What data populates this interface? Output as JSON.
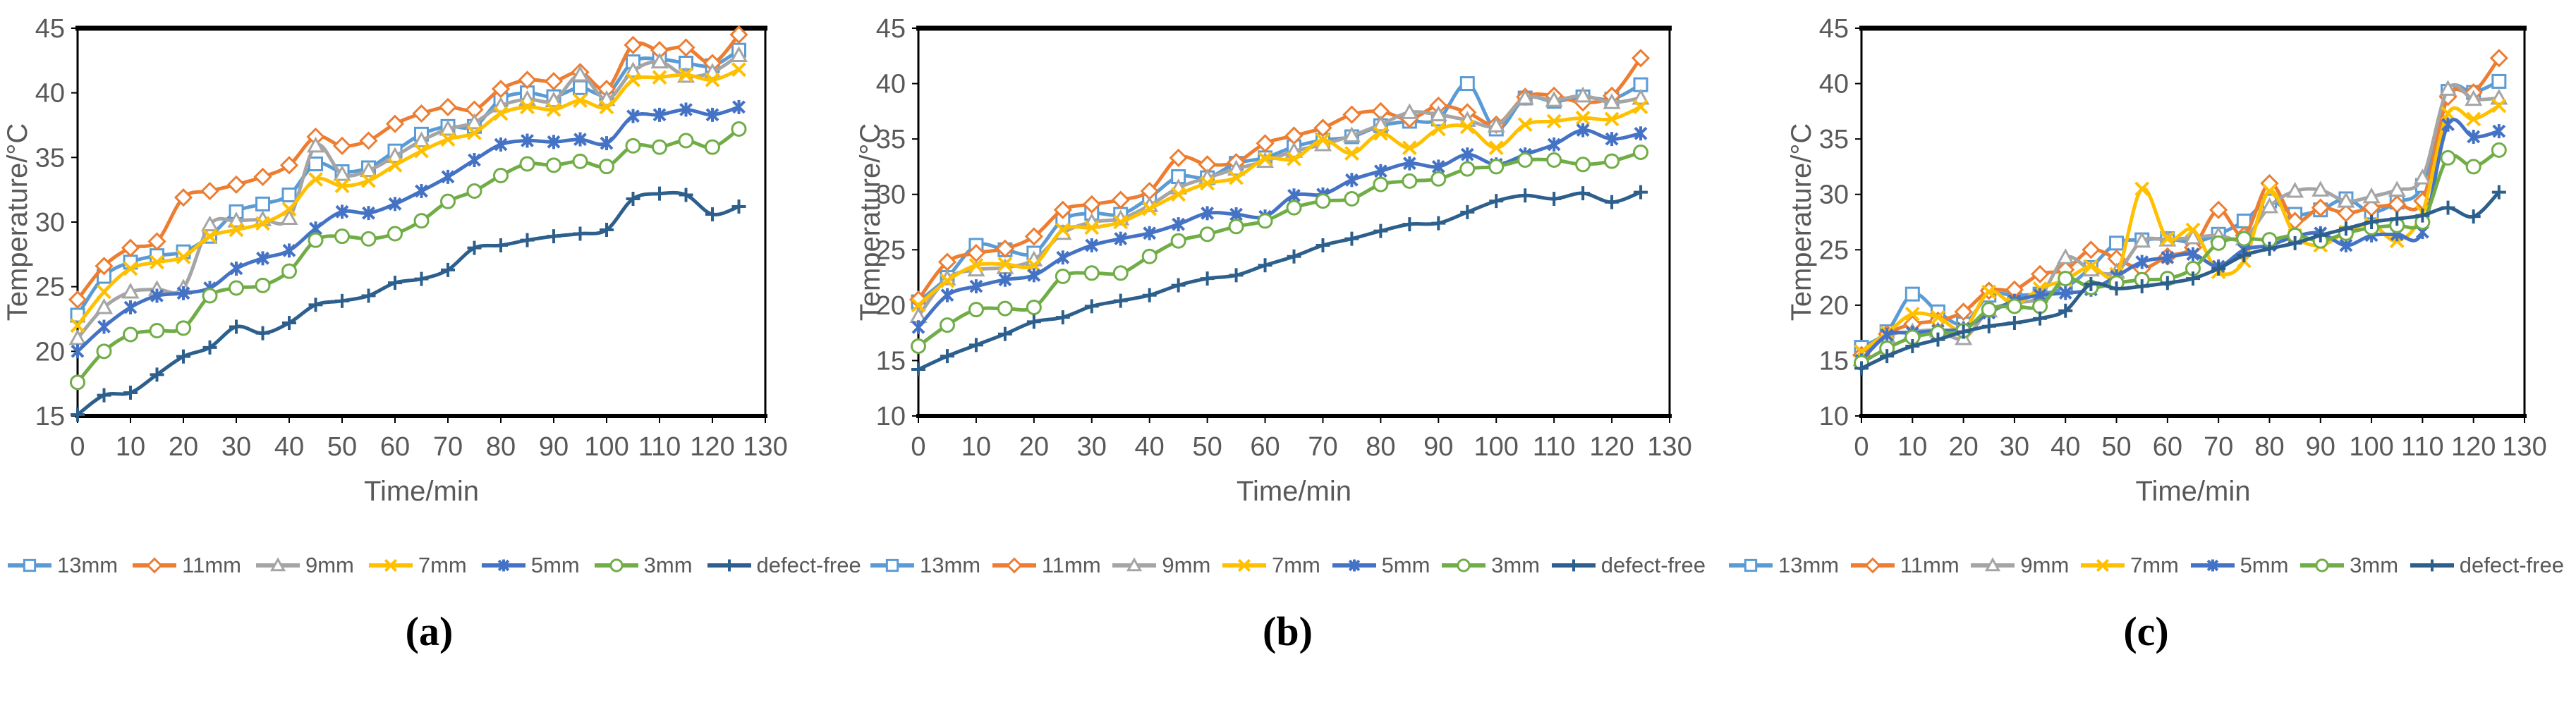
{
  "figure": {
    "xlabel": "Time/min",
    "ylabel": "Temperature/°C",
    "text_color": "#595959",
    "axis_color": "#000000"
  },
  "chart_data": [
    {
      "caption": "(a)",
      "type": "line",
      "title": "",
      "xlabel": "Time/min",
      "ylabel": "Temperature/°C",
      "xlim": [
        0,
        130
      ],
      "ylim": [
        15,
        45
      ],
      "xticks": [
        0,
        10,
        20,
        30,
        40,
        50,
        60,
        70,
        80,
        90,
        100,
        110,
        120,
        130
      ],
      "yticks": [
        15,
        20,
        25,
        30,
        35,
        40,
        45
      ],
      "grid": false,
      "legend_position": "bottom",
      "x": [
        0,
        5,
        10,
        15,
        20,
        25,
        30,
        35,
        40,
        45,
        50,
        55,
        60,
        65,
        70,
        75,
        80,
        85,
        90,
        95,
        100,
        105,
        110,
        115,
        120,
        125
      ],
      "series": [
        {
          "name": "13mm",
          "color": "#5B9BD5",
          "marker": "square",
          "values": [
            22.8,
            25.8,
            26.9,
            27.4,
            27.7,
            28.9,
            30.8,
            31.4,
            32.1,
            34.5,
            33.9,
            34.2,
            35.5,
            36.8,
            37.4,
            37.4,
            39.5,
            40.0,
            39.7,
            40.4,
            39.9,
            42.4,
            42.6,
            42.3,
            42.1,
            43.3
          ]
        },
        {
          "name": "11mm",
          "color": "#ED7D31",
          "marker": "diamond",
          "values": [
            24.0,
            26.6,
            28.0,
            28.5,
            31.9,
            32.4,
            32.9,
            33.5,
            34.4,
            36.6,
            35.9,
            36.3,
            37.6,
            38.4,
            38.9,
            38.7,
            40.3,
            41.0,
            40.9,
            41.6,
            40.3,
            43.7,
            43.3,
            43.5,
            42.3,
            44.5
          ]
        },
        {
          "name": "9mm",
          "color": "#A5A5A5",
          "marker": "triangle",
          "values": [
            21.0,
            23.4,
            24.6,
            24.8,
            24.9,
            29.8,
            30.1,
            30.2,
            30.3,
            35.9,
            33.7,
            34.0,
            35.1,
            36.3,
            37.2,
            37.7,
            39.0,
            39.5,
            39.4,
            41.4,
            39.5,
            41.7,
            42.4,
            41.3,
            41.6,
            42.9
          ]
        },
        {
          "name": "7mm",
          "color": "#FFC000",
          "marker": "x",
          "values": [
            22.0,
            24.6,
            26.4,
            26.9,
            27.3,
            28.9,
            29.4,
            29.9,
            31.0,
            33.3,
            32.8,
            33.2,
            34.4,
            35.5,
            36.4,
            36.9,
            38.4,
            38.9,
            38.7,
            39.4,
            38.9,
            41.0,
            41.2,
            41.4,
            41.0,
            41.8
          ]
        },
        {
          "name": "5mm",
          "color": "#4472C4",
          "marker": "asterisk",
          "values": [
            20.0,
            21.9,
            23.4,
            24.3,
            24.5,
            24.9,
            26.4,
            27.2,
            27.8,
            29.5,
            30.8,
            30.7,
            31.4,
            32.4,
            33.5,
            34.8,
            36.0,
            36.3,
            36.2,
            36.4,
            36.1,
            38.2,
            38.3,
            38.7,
            38.3,
            38.9
          ]
        },
        {
          "name": "3mm",
          "color": "#70AD47",
          "marker": "circle",
          "values": [
            17.6,
            20.0,
            21.3,
            21.6,
            21.8,
            24.3,
            24.9,
            25.1,
            26.2,
            28.6,
            28.9,
            28.7,
            29.1,
            30.1,
            31.6,
            32.4,
            33.6,
            34.5,
            34.4,
            34.7,
            34.3,
            35.9,
            35.8,
            36.3,
            35.8,
            37.2
          ]
        },
        {
          "name": "defect-free",
          "color": "#2D5F8D",
          "marker": "plus",
          "values": [
            15.1,
            16.6,
            16.8,
            18.2,
            19.6,
            20.3,
            21.9,
            21.4,
            22.2,
            23.6,
            23.9,
            24.3,
            25.3,
            25.6,
            26.3,
            28.0,
            28.2,
            28.6,
            28.9,
            29.1,
            29.4,
            31.8,
            32.2,
            32.1,
            30.6,
            31.2
          ]
        }
      ]
    },
    {
      "caption": "(b)",
      "type": "line",
      "title": "",
      "xlabel": "Time/min",
      "ylabel": "Temperature/°C",
      "xlim": [
        0,
        130
      ],
      "ylim": [
        10,
        45
      ],
      "xticks": [
        0,
        10,
        20,
        30,
        40,
        50,
        60,
        70,
        80,
        90,
        100,
        110,
        120,
        130
      ],
      "yticks": [
        10,
        15,
        20,
        25,
        30,
        35,
        40,
        45
      ],
      "grid": false,
      "legend_position": "bottom",
      "x": [
        0,
        5,
        10,
        15,
        20,
        25,
        30,
        35,
        40,
        45,
        50,
        55,
        60,
        65,
        70,
        75,
        80,
        85,
        90,
        95,
        100,
        105,
        110,
        115,
        120,
        125
      ],
      "series": [
        {
          "name": "13mm",
          "color": "#5B9BD5",
          "marker": "square",
          "values": [
            20.3,
            22.5,
            25.4,
            25.0,
            24.7,
            27.7,
            28.3,
            28.2,
            29.7,
            31.6,
            31.5,
            32.8,
            33.3,
            34.3,
            34.9,
            35.2,
            36.2,
            36.6,
            36.8,
            40.0,
            35.9,
            38.7,
            38.4,
            38.8,
            38.6,
            39.9
          ]
        },
        {
          "name": "11mm",
          "color": "#ED7D31",
          "marker": "diamond",
          "values": [
            20.5,
            23.9,
            24.7,
            25.1,
            26.2,
            28.6,
            29.1,
            29.5,
            30.3,
            33.3,
            32.7,
            32.9,
            34.6,
            35.3,
            36.0,
            37.2,
            37.5,
            36.8,
            38.0,
            37.4,
            36.3,
            38.8,
            38.9,
            38.3,
            38.9,
            42.3
          ]
        },
        {
          "name": "9mm",
          "color": "#A5A5A5",
          "marker": "triangle",
          "values": [
            19.0,
            22.4,
            23.2,
            23.4,
            24.1,
            26.5,
            27.5,
            27.8,
            29.0,
            30.6,
            31.5,
            32.3,
            33.0,
            33.9,
            34.5,
            35.3,
            36.3,
            37.4,
            37.2,
            36.7,
            36.2,
            38.7,
            38.5,
            38.9,
            38.3,
            38.7
          ]
        },
        {
          "name": "7mm",
          "color": "#FFC000",
          "marker": "x",
          "values": [
            20.0,
            22.2,
            23.6,
            23.7,
            23.6,
            26.8,
            27.0,
            27.5,
            28.7,
            30.0,
            31.0,
            31.5,
            33.2,
            33.2,
            34.9,
            33.7,
            35.5,
            34.2,
            35.9,
            36.1,
            34.2,
            36.3,
            36.6,
            36.9,
            36.8,
            37.9
          ]
        },
        {
          "name": "5mm",
          "color": "#4472C4",
          "marker": "asterisk",
          "values": [
            18.0,
            20.9,
            21.7,
            22.3,
            22.7,
            24.3,
            25.4,
            26.0,
            26.5,
            27.3,
            28.3,
            28.2,
            28.0,
            29.9,
            30.0,
            31.3,
            32.1,
            32.8,
            32.5,
            33.6,
            32.7,
            33.6,
            34.5,
            35.8,
            35.0,
            35.5
          ]
        },
        {
          "name": "3mm",
          "color": "#70AD47",
          "marker": "circle",
          "values": [
            16.3,
            18.2,
            19.6,
            19.7,
            19.8,
            22.6,
            22.9,
            22.9,
            24.4,
            25.8,
            26.4,
            27.1,
            27.6,
            28.8,
            29.4,
            29.6,
            30.9,
            31.2,
            31.4,
            32.3,
            32.5,
            33.1,
            33.1,
            32.7,
            33.0,
            33.8
          ]
        },
        {
          "name": "defect-free",
          "color": "#2D5F8D",
          "marker": "plus",
          "values": [
            14.2,
            15.4,
            16.4,
            17.4,
            18.5,
            18.9,
            19.9,
            20.4,
            20.9,
            21.8,
            22.4,
            22.7,
            23.6,
            24.4,
            25.4,
            26.0,
            26.7,
            27.3,
            27.4,
            28.4,
            29.4,
            29.9,
            29.6,
            30.1,
            29.3,
            30.2
          ]
        }
      ]
    },
    {
      "caption": "(c)",
      "type": "line",
      "title": "",
      "xlabel": "Time/min",
      "ylabel": "Temperature/°C",
      "xlim": [
        0,
        130
      ],
      "ylim": [
        10,
        45
      ],
      "xticks": [
        0,
        10,
        20,
        30,
        40,
        50,
        60,
        70,
        80,
        90,
        100,
        110,
        120,
        130
      ],
      "yticks": [
        10,
        15,
        20,
        25,
        30,
        35,
        40,
        45
      ],
      "grid": false,
      "legend_position": "bottom",
      "x": [
        0,
        5,
        10,
        15,
        20,
        25,
        30,
        35,
        40,
        45,
        50,
        55,
        60,
        65,
        70,
        75,
        80,
        85,
        90,
        95,
        100,
        105,
        110,
        115,
        120,
        125
      ],
      "series": [
        {
          "name": "13mm",
          "color": "#5B9BD5",
          "marker": "square",
          "values": [
            16.2,
            17.6,
            21.0,
            19.4,
            18.3,
            20.9,
            20.9,
            21.0,
            21.6,
            23.4,
            25.6,
            25.9,
            26.0,
            25.7,
            26.4,
            27.6,
            29.4,
            28.2,
            28.6,
            29.6,
            28.4,
            29.3,
            30.8,
            39.3,
            39.2,
            40.2
          ]
        },
        {
          "name": "11mm",
          "color": "#ED7D31",
          "marker": "diamond",
          "values": [
            15.5,
            17.4,
            18.3,
            18.6,
            19.4,
            21.3,
            21.4,
            22.8,
            23.2,
            25.0,
            24.2,
            23.3,
            24.4,
            25.2,
            28.6,
            26.3,
            31.0,
            27.6,
            28.8,
            28.3,
            28.8,
            29.1,
            29.4,
            38.8,
            39.2,
            42.3
          ]
        },
        {
          "name": "9mm",
          "color": "#A5A5A5",
          "marker": "triangle",
          "values": [
            15.1,
            17.2,
            17.6,
            17.7,
            17.0,
            19.5,
            20.2,
            20.8,
            24.3,
            23.2,
            23.0,
            25.8,
            25.9,
            26.1,
            26.3,
            26.0,
            28.9,
            30.3,
            30.4,
            29.4,
            29.8,
            30.4,
            31.5,
            39.5,
            38.6,
            38.7
          ]
        },
        {
          "name": "7mm",
          "color": "#FFC000",
          "marker": "x",
          "values": [
            15.8,
            17.5,
            19.2,
            18.9,
            17.8,
            21.2,
            20.1,
            21.5,
            22.3,
            23.5,
            22.8,
            30.5,
            26.0,
            26.8,
            23.0,
            24.0,
            30.3,
            26.3,
            25.4,
            26.6,
            27.3,
            25.8,
            28.4,
            37.3,
            36.8,
            38.0
          ]
        },
        {
          "name": "5mm",
          "color": "#4472C4",
          "marker": "asterisk",
          "values": [
            15.0,
            17.3,
            17.5,
            17.7,
            17.9,
            19.3,
            20.4,
            20.9,
            21.1,
            21.4,
            22.6,
            23.9,
            24.3,
            24.6,
            23.5,
            25.0,
            25.4,
            26.2,
            26.5,
            25.4,
            26.3,
            26.4,
            26.6,
            36.3,
            35.2,
            35.7
          ]
        },
        {
          "name": "3mm",
          "color": "#70AD47",
          "marker": "circle",
          "values": [
            14.8,
            16.1,
            17.1,
            17.5,
            17.7,
            19.6,
            19.9,
            19.9,
            22.4,
            21.6,
            22.0,
            22.3,
            22.4,
            23.3,
            25.6,
            26.0,
            25.9,
            26.3,
            25.8,
            26.5,
            27.0,
            27.2,
            27.5,
            33.3,
            32.5,
            34.0
          ]
        },
        {
          "name": "defect-free",
          "color": "#2D5F8D",
          "marker": "plus",
          "values": [
            14.3,
            15.4,
            16.3,
            16.9,
            17.6,
            18.1,
            18.4,
            18.8,
            19.5,
            21.9,
            21.5,
            21.7,
            22.0,
            22.4,
            23.3,
            24.5,
            25.1,
            25.6,
            26.3,
            26.9,
            27.5,
            27.8,
            28.1,
            28.8,
            28.0,
            30.2
          ]
        }
      ]
    }
  ]
}
